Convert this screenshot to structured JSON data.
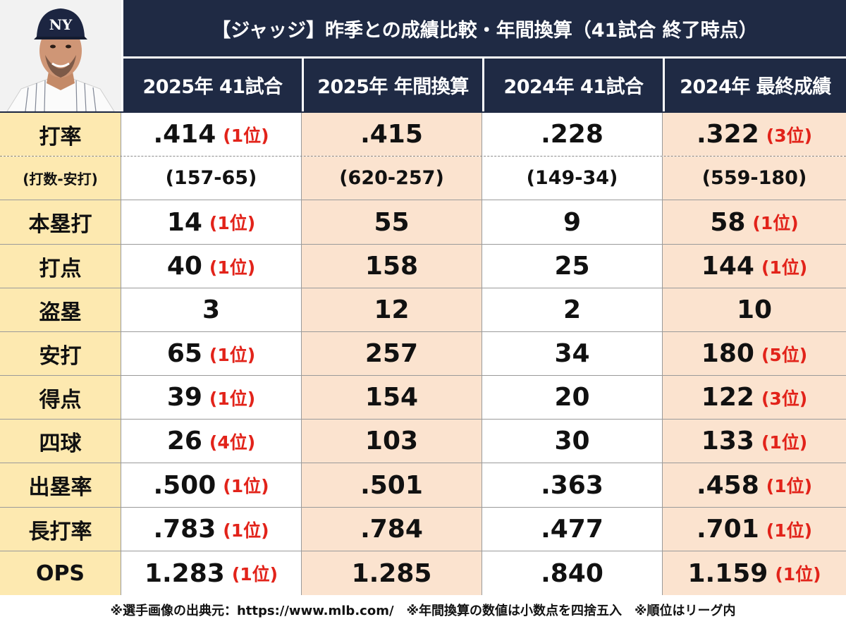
{
  "title": "【ジャッジ】昨季との成績比較・年間換算（41試合 終了時点）",
  "columns": [
    "2025年 41試合",
    "2025年 年間換算",
    "2024年 41試合",
    "2024年 最終成績"
  ],
  "rows": [
    {
      "label": "打率",
      "values": [
        {
          "v": ".414",
          "r": "(1位)"
        },
        {
          "v": ".415",
          "r": ""
        },
        {
          "v": ".228",
          "r": ""
        },
        {
          "v": ".322",
          "r": "(3位)"
        }
      ]
    },
    {
      "label": "(打数-安打)",
      "values": [
        {
          "v": "(157-65)",
          "r": ""
        },
        {
          "v": "(620-257)",
          "r": ""
        },
        {
          "v": "(149-34)",
          "r": ""
        },
        {
          "v": "(559-180)",
          "r": ""
        }
      ]
    },
    {
      "label": "本塁打",
      "values": [
        {
          "v": "14",
          "r": "(1位)"
        },
        {
          "v": "55",
          "r": ""
        },
        {
          "v": "9",
          "r": ""
        },
        {
          "v": "58",
          "r": "(1位)"
        }
      ]
    },
    {
      "label": "打点",
      "values": [
        {
          "v": "40",
          "r": "(1位)"
        },
        {
          "v": "158",
          "r": ""
        },
        {
          "v": "25",
          "r": ""
        },
        {
          "v": "144",
          "r": "(1位)"
        }
      ]
    },
    {
      "label": "盗塁",
      "values": [
        {
          "v": "3",
          "r": ""
        },
        {
          "v": "12",
          "r": ""
        },
        {
          "v": "2",
          "r": ""
        },
        {
          "v": "10",
          "r": ""
        }
      ]
    },
    {
      "label": "安打",
      "values": [
        {
          "v": "65",
          "r": "(1位)"
        },
        {
          "v": "257",
          "r": ""
        },
        {
          "v": "34",
          "r": ""
        },
        {
          "v": "180",
          "r": "(5位)"
        }
      ]
    },
    {
      "label": "得点",
      "values": [
        {
          "v": "39",
          "r": "(1位)"
        },
        {
          "v": "154",
          "r": ""
        },
        {
          "v": "20",
          "r": ""
        },
        {
          "v": "122",
          "r": "(3位)"
        }
      ]
    },
    {
      "label": "四球",
      "values": [
        {
          "v": "26",
          "r": "(4位)"
        },
        {
          "v": "103",
          "r": ""
        },
        {
          "v": "30",
          "r": ""
        },
        {
          "v": "133",
          "r": "(1位)"
        }
      ]
    },
    {
      "label": "出塁率",
      "values": [
        {
          "v": ".500",
          "r": "(1位)"
        },
        {
          "v": ".501",
          "r": ""
        },
        {
          "v": ".363",
          "r": ""
        },
        {
          "v": ".458",
          "r": "(1位)"
        }
      ]
    },
    {
      "label": "長打率",
      "values": [
        {
          "v": ".783",
          "r": "(1位)"
        },
        {
          "v": ".784",
          "r": ""
        },
        {
          "v": ".477",
          "r": ""
        },
        {
          "v": ".701",
          "r": "(1位)"
        }
      ]
    },
    {
      "label": "OPS",
      "values": [
        {
          "v": "1.283",
          "r": "(1位)"
        },
        {
          "v": "1.285",
          "r": ""
        },
        {
          "v": ".840",
          "r": ""
        },
        {
          "v": "1.159",
          "r": "(1位)"
        }
      ]
    }
  ],
  "footer": "※選手画像の出典元：https://www.mlb.com/　※年間換算の数値は小数点を四捨五入　※順位はリーグ内",
  "colors": {
    "header": "#1f2a44",
    "label_bg": "#fde9b0",
    "peach": "#fbe3cf",
    "rank": "#e2231a"
  }
}
